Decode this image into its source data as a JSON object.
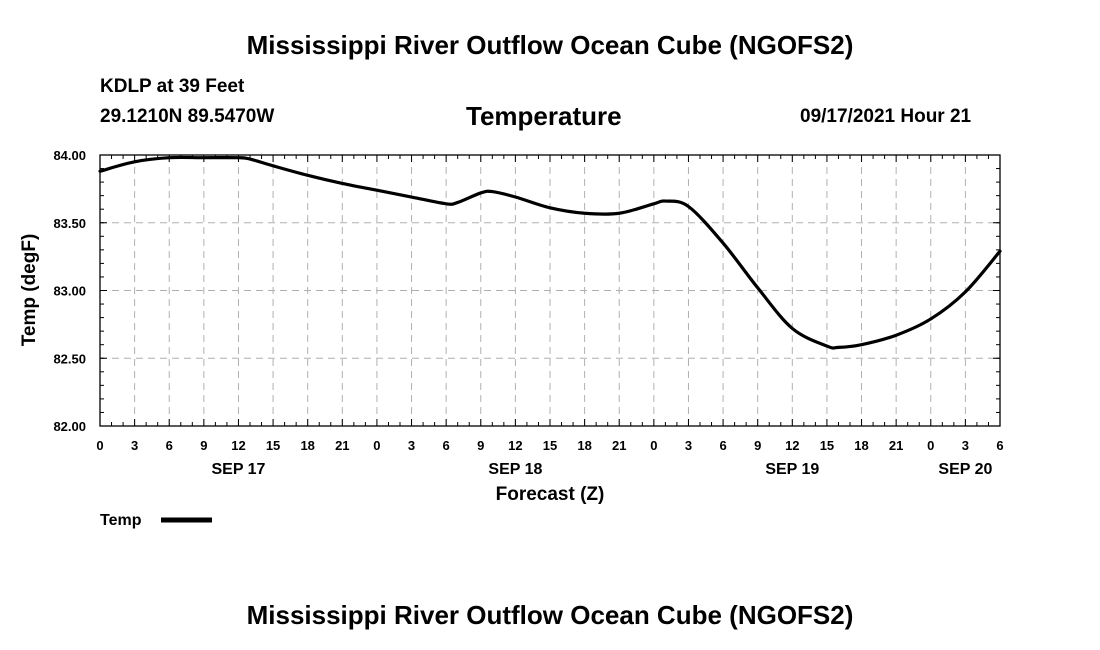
{
  "header": {
    "title": "Mississippi River Outflow Ocean Cube (NGOFS2)",
    "station": "KDLP at 39 Feet",
    "coords": "29.1210N  89.5470W",
    "variable": "Temperature",
    "datetime": "09/17/2021 Hour 21"
  },
  "footer": {
    "title": "Mississippi River Outflow Ocean Cube (NGOFS2)"
  },
  "colors": {
    "line": "#000000",
    "grid": "#b0b0b0",
    "frame": "#000000"
  },
  "chart_data": {
    "type": "line",
    "title": "Temperature",
    "xlabel": "Forecast (Z)",
    "ylabel": "Temp (degF)",
    "ylim": [
      82.0,
      84.0
    ],
    "yticks": [
      "82.00",
      "82.50",
      "83.00",
      "83.50",
      "84.00"
    ],
    "xlim_hours": [
      0,
      78
    ],
    "xtick_labels": [
      "0",
      "3",
      "6",
      "9",
      "12",
      "15",
      "18",
      "21",
      "0",
      "3",
      "6",
      "9",
      "12",
      "15",
      "18",
      "21",
      "0",
      "3",
      "6",
      "9",
      "12",
      "15",
      "18",
      "21",
      "0",
      "3",
      "6"
    ],
    "date_labels": [
      {
        "label": "SEP 17",
        "hour": 12
      },
      {
        "label": "SEP 18",
        "hour": 36
      },
      {
        "label": "SEP 19",
        "hour": 60
      },
      {
        "label": "SEP 20",
        "hour": 75
      }
    ],
    "legend": {
      "label": "Temp",
      "position": "bottom-left"
    },
    "grid": true,
    "series": [
      {
        "name": "Temp",
        "x_hours": [
          0,
          3,
          6,
          9,
          12,
          13,
          15,
          18,
          21,
          24,
          27,
          30,
          31,
          33,
          34,
          36,
          39,
          42,
          45,
          48,
          49,
          51,
          54,
          57,
          60,
          63,
          64,
          66,
          69,
          72,
          75,
          78
        ],
        "values": [
          83.88,
          83.95,
          83.98,
          83.98,
          83.98,
          83.97,
          83.92,
          83.85,
          83.79,
          83.74,
          83.69,
          83.64,
          83.65,
          83.72,
          83.73,
          83.69,
          83.61,
          83.57,
          83.57,
          83.64,
          83.66,
          83.62,
          83.35,
          83.02,
          82.72,
          82.59,
          82.58,
          82.6,
          82.67,
          82.79,
          82.99,
          83.29
        ]
      }
    ]
  }
}
